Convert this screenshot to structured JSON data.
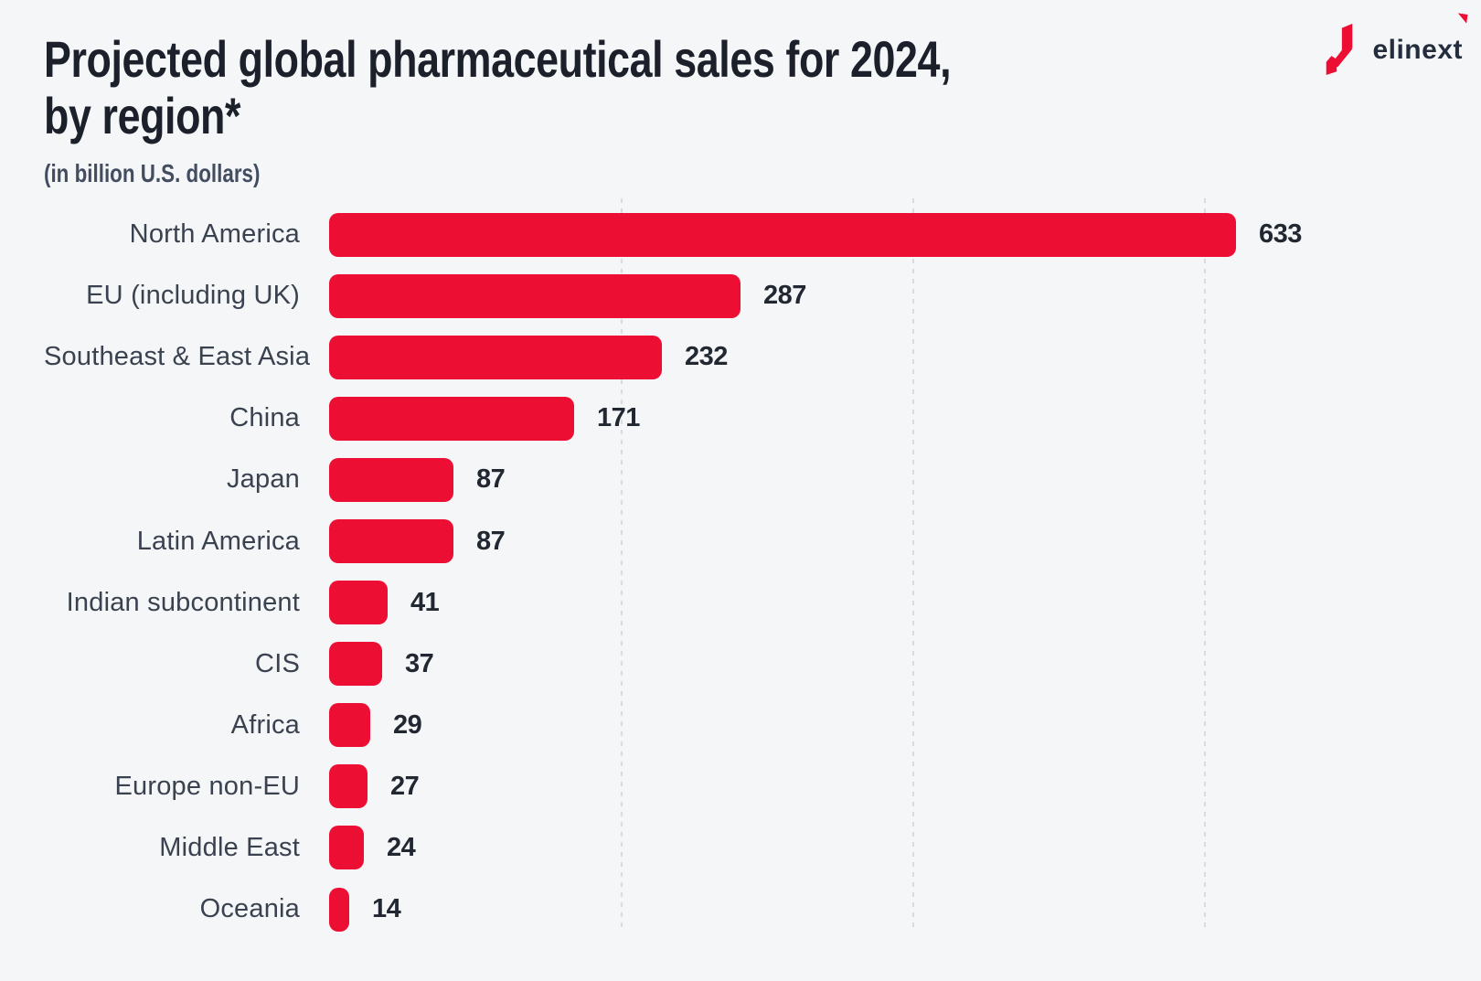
{
  "header": {
    "title_line1": "Projected global pharmaceutical sales for 2024,",
    "title_line2": "by region*",
    "subtitle": "(in billion U.S. dollars)"
  },
  "logo": {
    "text": "elinext",
    "icon": "elinext-n-mark",
    "text_color": "#242D3D",
    "accent_color": "#ED0E33"
  },
  "chart_data": {
    "type": "bar",
    "orientation": "horizontal",
    "title": "Projected global pharmaceutical sales for 2024, by region*",
    "units_label": "(in billion U.S. dollars)",
    "categories": [
      "North America",
      "EU (including UK)",
      "Southeast & East Asia",
      "China",
      "Japan",
      "Latin America",
      "Indian subcontinent",
      "CIS",
      "Africa",
      "Europe non-EU",
      "Middle East",
      "Oceania"
    ],
    "values": [
      633,
      287,
      232,
      171,
      87,
      87,
      41,
      37,
      29,
      27,
      24,
      14
    ],
    "value_labels_shown": true,
    "xlim": [
      0,
      650
    ],
    "bar_color": "#ED0E33",
    "background_color": "#F5F6F8",
    "grid": "vertical-dashed",
    "legend": "none"
  }
}
